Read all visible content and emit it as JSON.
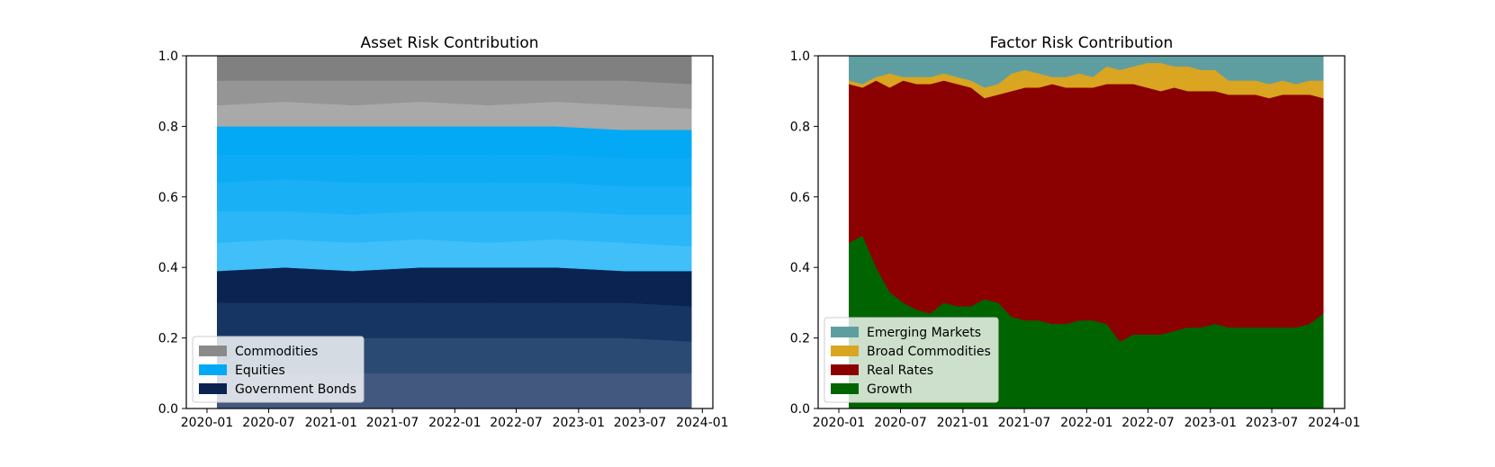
{
  "chart_data": [
    {
      "type": "area",
      "title": "Asset Risk Contribution",
      "xlabel": "",
      "ylabel": "",
      "ylim": [
        0,
        1
      ],
      "xlim": [
        "2019-11-01",
        "2024-02-01"
      ],
      "xrange": [
        "2020-01-31",
        "2023-11-30"
      ],
      "xtick_labels": [
        "2020-01",
        "2020-07",
        "2021-01",
        "2021-07",
        "2022-01",
        "2022-07",
        "2023-01",
        "2023-07",
        "2024-01"
      ],
      "ytick_labels": [
        "0.0",
        "0.2",
        "0.4",
        "0.6",
        "0.8",
        "1.0"
      ],
      "legend_position": "lower-left",
      "legend": [
        {
          "label": "Commodities",
          "color": "#8a8a8a"
        },
        {
          "label": "Equities",
          "color": "#03a9f4"
        },
        {
          "label": "Government Bonds",
          "color": "#0a2351"
        }
      ],
      "series": [
        {
          "group": "Government Bonds",
          "color": "#42587f",
          "boundary_top": [
            0.1,
            0.1,
            0.1,
            0.1,
            0.1,
            0.1,
            0.1,
            0.1
          ]
        },
        {
          "group": "Government Bonds",
          "color": "#2b4a73",
          "boundary_top": [
            0.2,
            0.2,
            0.2,
            0.2,
            0.2,
            0.2,
            0.2,
            0.19
          ]
        },
        {
          "group": "Government Bonds",
          "color": "#163563",
          "boundary_top": [
            0.3,
            0.3,
            0.3,
            0.3,
            0.3,
            0.3,
            0.3,
            0.29
          ]
        },
        {
          "group": "Government Bonds",
          "color": "#0a2351",
          "boundary_top": [
            0.39,
            0.4,
            0.39,
            0.4,
            0.4,
            0.4,
            0.39,
            0.39
          ]
        },
        {
          "group": "Equities",
          "color": "#40bff9",
          "boundary_top": [
            0.47,
            0.48,
            0.47,
            0.48,
            0.47,
            0.48,
            0.47,
            0.46
          ]
        },
        {
          "group": "Equities",
          "color": "#2bb6f7",
          "boundary_top": [
            0.56,
            0.56,
            0.55,
            0.56,
            0.56,
            0.56,
            0.55,
            0.55
          ]
        },
        {
          "group": "Equities",
          "color": "#1ab0f6",
          "boundary_top": [
            0.64,
            0.65,
            0.64,
            0.64,
            0.64,
            0.64,
            0.63,
            0.63
          ]
        },
        {
          "group": "Equities",
          "color": "#0eabf5",
          "boundary_top": [
            0.72,
            0.72,
            0.72,
            0.72,
            0.72,
            0.72,
            0.71,
            0.71
          ]
        },
        {
          "group": "Equities",
          "color": "#03a9f4",
          "boundary_top": [
            0.8,
            0.8,
            0.8,
            0.8,
            0.8,
            0.8,
            0.79,
            0.79
          ]
        },
        {
          "group": "Commodities",
          "color": "#a9a9a9",
          "boundary_top": [
            0.86,
            0.87,
            0.86,
            0.87,
            0.86,
            0.87,
            0.86,
            0.85
          ]
        },
        {
          "group": "Commodities",
          "color": "#959595",
          "boundary_top": [
            0.93,
            0.93,
            0.93,
            0.93,
            0.93,
            0.93,
            0.93,
            0.92
          ]
        },
        {
          "group": "Commodities",
          "color": "#808080",
          "boundary_top": [
            1.0,
            1.0,
            1.0,
            1.0,
            1.0,
            1.0,
            1.0,
            1.0
          ]
        }
      ]
    },
    {
      "type": "area",
      "title": "Factor Risk Contribution",
      "xlabel": "",
      "ylabel": "",
      "ylim": [
        0,
        1
      ],
      "xlim": [
        "2019-11-01",
        "2024-02-01"
      ],
      "xrange": [
        "2020-01-31",
        "2023-11-30"
      ],
      "xtick_labels": [
        "2020-01",
        "2020-07",
        "2021-01",
        "2021-07",
        "2022-01",
        "2022-07",
        "2023-01",
        "2023-07",
        "2024-01"
      ],
      "ytick_labels": [
        "0.0",
        "0.2",
        "0.4",
        "0.6",
        "0.8",
        "1.0"
      ],
      "legend_position": "lower-left",
      "legend": [
        {
          "label": "Emerging Markets",
          "color": "#5f9ea0"
        },
        {
          "label": "Broad Commodities",
          "color": "#daa520"
        },
        {
          "label": "Real Rates",
          "color": "#8b0000"
        },
        {
          "label": "Growth",
          "color": "#006400"
        }
      ],
      "series": [
        {
          "name": "Growth",
          "color": "#006400",
          "boundary_top": [
            0.47,
            0.49,
            0.4,
            0.33,
            0.3,
            0.28,
            0.27,
            0.3,
            0.29,
            0.29,
            0.31,
            0.3,
            0.26,
            0.25,
            0.25,
            0.24,
            0.24,
            0.25,
            0.25,
            0.24,
            0.19,
            0.21,
            0.21,
            0.21,
            0.22,
            0.23,
            0.23,
            0.24,
            0.23,
            0.23,
            0.23,
            0.23,
            0.23,
            0.23,
            0.24,
            0.27
          ]
        },
        {
          "name": "Real Rates",
          "color": "#8b0000",
          "boundary_top": [
            0.92,
            0.91,
            0.93,
            0.91,
            0.93,
            0.92,
            0.92,
            0.93,
            0.92,
            0.91,
            0.88,
            0.89,
            0.9,
            0.91,
            0.91,
            0.92,
            0.91,
            0.91,
            0.91,
            0.92,
            0.92,
            0.92,
            0.91,
            0.9,
            0.91,
            0.9,
            0.9,
            0.9,
            0.89,
            0.89,
            0.89,
            0.88,
            0.89,
            0.89,
            0.89,
            0.88
          ]
        },
        {
          "name": "Broad Commodities",
          "color": "#daa520",
          "boundary_top": [
            0.93,
            0.92,
            0.94,
            0.95,
            0.94,
            0.94,
            0.94,
            0.95,
            0.94,
            0.93,
            0.91,
            0.92,
            0.95,
            0.96,
            0.95,
            0.94,
            0.94,
            0.95,
            0.94,
            0.97,
            0.96,
            0.97,
            0.98,
            0.98,
            0.97,
            0.97,
            0.96,
            0.96,
            0.93,
            0.93,
            0.93,
            0.92,
            0.93,
            0.92,
            0.93,
            0.93
          ]
        },
        {
          "name": "Emerging Markets",
          "color": "#5f9ea0",
          "boundary_top": [
            1.0,
            1.0,
            1.0,
            1.0,
            1.0,
            1.0,
            1.0,
            1.0,
            1.0,
            1.0,
            1.0,
            1.0,
            1.0,
            1.0,
            1.0,
            1.0,
            1.0,
            1.0,
            1.0,
            1.0,
            1.0,
            1.0,
            1.0,
            1.0,
            1.0,
            1.0,
            1.0,
            1.0,
            1.0,
            1.0,
            1.0,
            1.0,
            1.0,
            1.0,
            1.0,
            1.0
          ]
        }
      ]
    }
  ]
}
